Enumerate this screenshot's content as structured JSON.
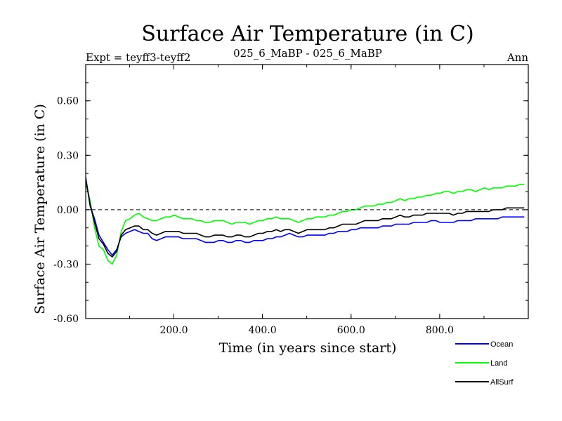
{
  "chart_data": {
    "type": "line",
    "title": "Surface Air Temperature (in C)",
    "subtitle_left": "Expt = teyff3-teyff2",
    "subtitle_center": "025_6_MaBP - 025_6_MaBP",
    "subtitle_right": "Ann",
    "xlabel": "Time (in years since start)",
    "ylabel": "Surface Air Temperature (in C)",
    "xlim": [
      1,
      1000
    ],
    "ylim": [
      -0.6,
      0.8
    ],
    "x_ticks": [
      200,
      400,
      600,
      800
    ],
    "x_tick_labels": [
      "200.0",
      "400.0",
      "600.0",
      "800.0"
    ],
    "y_ticks": [
      -0.6,
      -0.3,
      0.0,
      0.3,
      0.6
    ],
    "y_tick_labels": [
      "-0.60",
      "-0.30",
      "0.00",
      "0.30",
      "0.60"
    ],
    "zero_line": true,
    "legend_position": "bottom-right, below plot",
    "series": [
      {
        "name": "Ocean",
        "color": "#0000ff",
        "x_step": 10,
        "values": [
          0.18,
          0.02,
          -0.05,
          -0.14,
          -0.18,
          -0.22,
          -0.25,
          -0.22,
          -0.15,
          -0.13,
          -0.12,
          -0.11,
          -0.12,
          -0.13,
          -0.13,
          -0.16,
          -0.17,
          -0.16,
          -0.15,
          -0.15,
          -0.15,
          -0.15,
          -0.16,
          -0.16,
          -0.16,
          -0.16,
          -0.17,
          -0.18,
          -0.18,
          -0.18,
          -0.17,
          -0.17,
          -0.18,
          -0.18,
          -0.17,
          -0.17,
          -0.18,
          -0.18,
          -0.17,
          -0.17,
          -0.17,
          -0.16,
          -0.16,
          -0.15,
          -0.15,
          -0.14,
          -0.13,
          -0.14,
          -0.15,
          -0.15,
          -0.14,
          -0.14,
          -0.14,
          -0.14,
          -0.14,
          -0.13,
          -0.13,
          -0.12,
          -0.12,
          -0.12,
          -0.11,
          -0.11,
          -0.1,
          -0.1,
          -0.1,
          -0.1,
          -0.1,
          -0.09,
          -0.09,
          -0.09,
          -0.08,
          -0.08,
          -0.08,
          -0.08,
          -0.07,
          -0.07,
          -0.07,
          -0.07,
          -0.06,
          -0.06,
          -0.07,
          -0.07,
          -0.07,
          -0.07,
          -0.06,
          -0.06,
          -0.06,
          -0.06,
          -0.05,
          -0.05,
          -0.05,
          -0.05,
          -0.05,
          -0.05,
          -0.04,
          -0.04,
          -0.04,
          -0.04,
          -0.04,
          -0.04
        ]
      },
      {
        "name": "Land",
        "color": "#00ff00",
        "x_step": 10,
        "values": [
          0.15,
          0.05,
          -0.1,
          -0.2,
          -0.22,
          -0.28,
          -0.3,
          -0.25,
          -0.12,
          -0.06,
          -0.05,
          -0.03,
          -0.02,
          -0.04,
          -0.05,
          -0.06,
          -0.06,
          -0.05,
          -0.04,
          -0.04,
          -0.03,
          -0.04,
          -0.05,
          -0.05,
          -0.05,
          -0.06,
          -0.06,
          -0.07,
          -0.07,
          -0.06,
          -0.06,
          -0.06,
          -0.07,
          -0.08,
          -0.07,
          -0.07,
          -0.07,
          -0.08,
          -0.07,
          -0.06,
          -0.06,
          -0.05,
          -0.05,
          -0.04,
          -0.05,
          -0.05,
          -0.05,
          -0.06,
          -0.07,
          -0.06,
          -0.05,
          -0.05,
          -0.04,
          -0.04,
          -0.04,
          -0.03,
          -0.03,
          -0.02,
          -0.01,
          -0.01,
          0.0,
          0.0,
          0.01,
          0.02,
          0.02,
          0.02,
          0.03,
          0.03,
          0.04,
          0.04,
          0.05,
          0.06,
          0.05,
          0.06,
          0.06,
          0.07,
          0.07,
          0.08,
          0.08,
          0.09,
          0.09,
          0.1,
          0.1,
          0.09,
          0.1,
          0.1,
          0.11,
          0.11,
          0.1,
          0.11,
          0.12,
          0.11,
          0.12,
          0.12,
          0.12,
          0.13,
          0.13,
          0.13,
          0.14,
          0.14
        ]
      },
      {
        "name": "AllSurf",
        "color": "#000000",
        "x_step": 10,
        "values": [
          0.17,
          0.03,
          -0.07,
          -0.16,
          -0.19,
          -0.24,
          -0.26,
          -0.23,
          -0.14,
          -0.11,
          -0.1,
          -0.09,
          -0.09,
          -0.11,
          -0.11,
          -0.13,
          -0.14,
          -0.13,
          -0.12,
          -0.12,
          -0.12,
          -0.12,
          -0.13,
          -0.13,
          -0.13,
          -0.13,
          -0.14,
          -0.15,
          -0.15,
          -0.14,
          -0.14,
          -0.14,
          -0.15,
          -0.15,
          -0.14,
          -0.14,
          -0.15,
          -0.15,
          -0.14,
          -0.13,
          -0.13,
          -0.12,
          -0.12,
          -0.11,
          -0.12,
          -0.11,
          -0.11,
          -0.12,
          -0.13,
          -0.12,
          -0.11,
          -0.11,
          -0.11,
          -0.11,
          -0.11,
          -0.1,
          -0.1,
          -0.09,
          -0.08,
          -0.08,
          -0.08,
          -0.08,
          -0.07,
          -0.06,
          -0.06,
          -0.06,
          -0.06,
          -0.05,
          -0.05,
          -0.05,
          -0.04,
          -0.03,
          -0.04,
          -0.04,
          -0.03,
          -0.03,
          -0.03,
          -0.02,
          -0.02,
          -0.02,
          -0.02,
          -0.02,
          -0.02,
          -0.03,
          -0.02,
          -0.02,
          -0.01,
          -0.01,
          -0.01,
          -0.01,
          -0.01,
          -0.01,
          0.0,
          0.0,
          0.0,
          0.01,
          0.01,
          0.01,
          0.01,
          0.01
        ]
      }
    ]
  }
}
